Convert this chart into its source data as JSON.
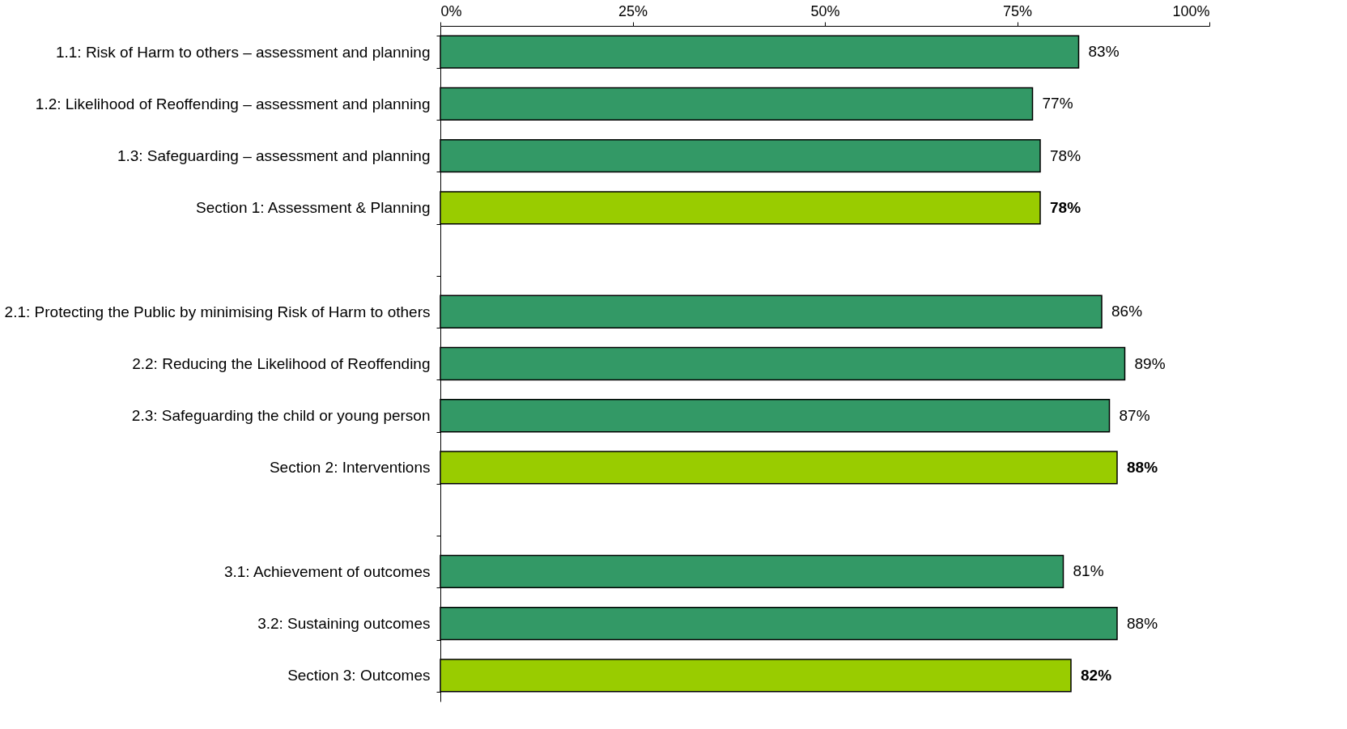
{
  "chart_data": {
    "type": "bar",
    "orientation": "horizontal",
    "categories": [
      "1.1: Risk of Harm to others – assessment and planning",
      "1.2: Likelihood of Reoffending – assessment and planning",
      "1.3: Safeguarding – assessment and planning",
      "Section 1: Assessment & Planning",
      null,
      "2.1: Protecting the Public by minimising Risk of Harm to others",
      "2.2: Reducing the Likelihood of Reoffending",
      "2.3: Safeguarding the child or young person",
      "Section 2: Interventions",
      null,
      "3.1: Achievement of outcomes",
      "3.2: Sustaining outcomes",
      "Section 3: Outcomes"
    ],
    "values": [
      83,
      77,
      78,
      78,
      null,
      86,
      89,
      87,
      88,
      null,
      81,
      88,
      82
    ],
    "colors": [
      "#339966",
      "#339966",
      "#339966",
      "#99cc00",
      null,
      "#339966",
      "#339966",
      "#339966",
      "#99cc00",
      null,
      "#339966",
      "#339966",
      "#99cc00"
    ],
    "value_labels": [
      "83%",
      "77%",
      "78%",
      "78%",
      null,
      "86%",
      "89%",
      "87%",
      "88%",
      null,
      "81%",
      "88%",
      "82%"
    ],
    "xlim": [
      0,
      100
    ],
    "xticks": [
      {
        "value": 0,
        "label": "0%"
      },
      {
        "value": 25,
        "label": "25%"
      },
      {
        "value": 50,
        "label": "50%"
      },
      {
        "value": 75,
        "label": "75%"
      },
      {
        "value": 100,
        "label": "100%"
      }
    ],
    "grid": false
  }
}
